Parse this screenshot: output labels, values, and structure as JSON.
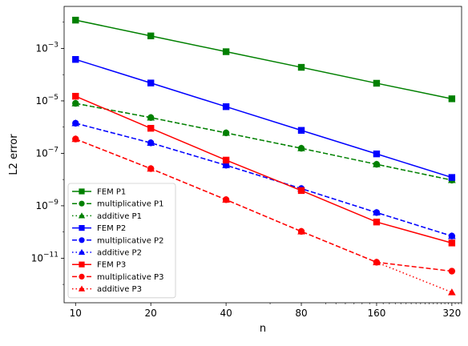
{
  "chart_data": {
    "type": "line",
    "title": "",
    "xlabel": "n",
    "ylabel": "L2 error",
    "xscale": "log2",
    "yscale": "log10",
    "x": [
      10,
      20,
      40,
      80,
      160,
      320
    ],
    "x_tick_labels": [
      "10",
      "20",
      "40",
      "80",
      "160",
      "320"
    ],
    "y_tick_labels": [
      {
        "base": "10",
        "exp": "−3",
        "value": 0.001
      },
      {
        "base": "10",
        "exp": "−5",
        "value": 1e-05
      },
      {
        "base": "10",
        "exp": "−7",
        "value": 1e-07
      },
      {
        "base": "10",
        "exp": "−9",
        "value": 1e-09
      },
      {
        "base": "10",
        "exp": "−11",
        "value": 1e-11
      }
    ],
    "xlim": [
      9,
      350
    ],
    "ylim": [
      2e-13,
      0.04
    ],
    "grid": false,
    "legend_position": "lower-left",
    "series": [
      {
        "name": "FEM P1",
        "color": "#008000",
        "marker": "square",
        "linestyle": "solid",
        "values": [
          0.012,
          0.003,
          0.00075,
          0.00019,
          4.7e-05,
          1.2e-05
        ]
      },
      {
        "name": "multiplicative P1",
        "color": "#008000",
        "marker": "circle",
        "linestyle": "dashed",
        "values": [
          8e-06,
          2.3e-06,
          6e-07,
          1.55e-07,
          3.8e-08,
          9.5e-09
        ]
      },
      {
        "name": "additive P1",
        "color": "#008000",
        "marker": "triangle",
        "linestyle": "dotted",
        "values": [
          8e-06,
          2.3e-06,
          6e-07,
          1.55e-07,
          3.8e-08,
          9.5e-09
        ]
      },
      {
        "name": "FEM P2",
        "color": "#0000ff",
        "marker": "square",
        "linestyle": "solid",
        "values": [
          0.00038,
          4.8e-05,
          6e-06,
          7.5e-07,
          9.5e-08,
          1.2e-08
        ]
      },
      {
        "name": "multiplicative P2",
        "color": "#0000ff",
        "marker": "circle",
        "linestyle": "dashed",
        "values": [
          1.4e-06,
          2.5e-07,
          3.5e-08,
          4.5e-09,
          5.5e-10,
          7e-11
        ]
      },
      {
        "name": "additive P2",
        "color": "#0000ff",
        "marker": "triangle",
        "linestyle": "dotted",
        "values": [
          1.4e-06,
          2.5e-07,
          3.5e-08,
          4.5e-09,
          5.5e-10,
          7e-11
        ]
      },
      {
        "name": "FEM P3",
        "color": "#ff0000",
        "marker": "square",
        "linestyle": "solid",
        "values": [
          1.5e-05,
          9e-07,
          5.5e-08,
          3.8e-09,
          2.4e-10,
          3.8e-11
        ]
      },
      {
        "name": "multiplicative P3",
        "color": "#ff0000",
        "marker": "circle",
        "linestyle": "dashed",
        "values": [
          3.5e-07,
          2.6e-08,
          1.7e-09,
          1.05e-10,
          7e-12,
          3.2e-12
        ]
      },
      {
        "name": "additive P3",
        "color": "#ff0000",
        "marker": "triangle",
        "linestyle": "dotted",
        "values": [
          3.5e-07,
          2.6e-08,
          1.7e-09,
          1.05e-10,
          7e-12,
          5e-13
        ]
      }
    ]
  }
}
